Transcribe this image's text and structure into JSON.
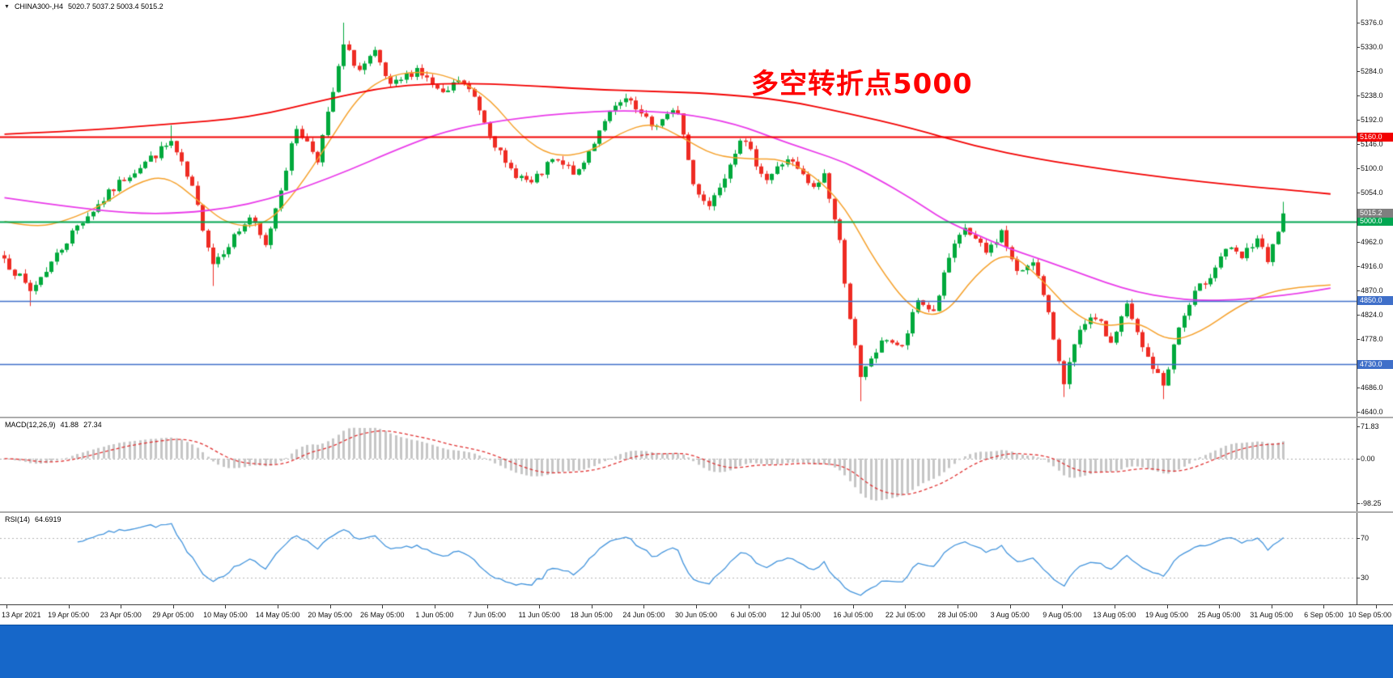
{
  "header": {
    "symbol": "CHINA300-,H4",
    "ohlc": "5020.7 5037.2 5003.4 5015.2"
  },
  "annotation": {
    "text": "多空转折点5000",
    "color": "#FF0000"
  },
  "colors": {
    "background": "#FFFFFF",
    "candle_up": "#00A93C",
    "candle_down": "#EE2B23",
    "bottom_bar": "#1667C9"
  },
  "chart_data": {
    "type": "candlestick",
    "symbol": "CHINA300-",
    "timeframe": "H4",
    "current_ohlc": {
      "open": 5020.7,
      "high": 5037.2,
      "low": 5003.4,
      "close": 5015.2
    },
    "price_axis": {
      "min": 4640,
      "max": 5376,
      "tick_step": 46,
      "ticks": [
        "5376.0",
        "5330.0",
        "5284.0",
        "5238.0",
        "5192.0",
        "5146.0",
        "5100.0",
        "5054.0",
        "4962.0",
        "4916.0",
        "4870.0",
        "4824.0",
        "4778.0",
        "4686.0",
        "4640.0"
      ]
    },
    "time_labels": [
      "13 Apr 2021",
      "19 Apr 05:00",
      "23 Apr 05:00",
      "29 Apr 05:00",
      "10 May 05:00",
      "14 May 05:00",
      "20 May 05:00",
      "26 May 05:00",
      "1 Jun 05:00",
      "7 Jun 05:00",
      "11 Jun 05:00",
      "18 Jun 05:00",
      "24 Jun 05:00",
      "30 Jun 05:00",
      "6 Jul 05:00",
      "12 Jul 05:00",
      "16 Jul 05:00",
      "22 Jul 05:00",
      "28 Jul 05:00",
      "3 Aug 05:00",
      "9 Aug 05:00",
      "13 Aug 05:00",
      "19 Aug 05:00",
      "25 Aug 05:00",
      "31 Aug 05:00",
      "6 Sep 05:00",
      "10 Sep 05:00"
    ],
    "candles": {
      "count": 246,
      "seed": 7,
      "noise": 9,
      "wick": 9,
      "close_anchors": [
        [
          0,
          4930
        ],
        [
          5,
          4868
        ],
        [
          14,
          4992
        ],
        [
          23,
          5082
        ],
        [
          32,
          5150
        ],
        [
          36,
          5060
        ],
        [
          40,
          4922
        ],
        [
          47,
          5008
        ],
        [
          50,
          4952
        ],
        [
          56,
          5178
        ],
        [
          60,
          5120
        ],
        [
          62,
          5200
        ],
        [
          65,
          5332
        ],
        [
          68,
          5286
        ],
        [
          71,
          5316
        ],
        [
          74,
          5252
        ],
        [
          79,
          5290
        ],
        [
          84,
          5236
        ],
        [
          87,
          5268
        ],
        [
          90,
          5235
        ],
        [
          96,
          5105
        ],
        [
          101,
          5070
        ],
        [
          105,
          5115
        ],
        [
          110,
          5090
        ],
        [
          115,
          5195
        ],
        [
          119,
          5230
        ],
        [
          124,
          5180
        ],
        [
          129,
          5210
        ],
        [
          132,
          5070
        ],
        [
          135,
          5030
        ],
        [
          138,
          5090
        ],
        [
          141,
          5160
        ],
        [
          146,
          5080
        ],
        [
          150,
          5120
        ],
        [
          155,
          5060
        ],
        [
          157,
          5090
        ],
        [
          160,
          4960
        ],
        [
          162,
          4820
        ],
        [
          164,
          4700
        ],
        [
          166,
          4742
        ],
        [
          169,
          4780
        ],
        [
          172,
          4760
        ],
        [
          175,
          4850
        ],
        [
          178,
          4830
        ],
        [
          181,
          4930
        ],
        [
          184,
          4988
        ],
        [
          188,
          4940
        ],
        [
          191,
          4980
        ],
        [
          194,
          4900
        ],
        [
          197,
          4930
        ],
        [
          200,
          4820
        ],
        [
          203,
          4700
        ],
        [
          206,
          4790
        ],
        [
          209,
          4820
        ],
        [
          212,
          4770
        ],
        [
          215,
          4840
        ],
        [
          218,
          4760
        ],
        [
          222,
          4690
        ],
        [
          225,
          4800
        ],
        [
          228,
          4862
        ],
        [
          231,
          4900
        ],
        [
          234,
          4950
        ],
        [
          237,
          4930
        ],
        [
          240,
          4968
        ],
        [
          242,
          4920
        ],
        [
          245,
          5015.2
        ]
      ],
      "extremes": [
        {
          "i": 65,
          "high": 5376
        },
        {
          "i": 32,
          "high": 5182
        },
        {
          "i": 164,
          "low": 4660
        },
        {
          "i": 203,
          "low": 4668
        },
        {
          "i": 222,
          "low": 4664
        },
        {
          "i": 5,
          "low": 4840
        },
        {
          "i": 40,
          "low": 4878
        },
        {
          "i": 245,
          "high": 5037.2
        }
      ]
    },
    "moving_averages": [
      {
        "name": "ma-fast-orange",
        "color": "#F5A02A",
        "width": 1.5,
        "points": [
          [
            0,
            5000
          ],
          [
            6,
            4988
          ],
          [
            12,
            5002
          ],
          [
            19,
            5032
          ],
          [
            25,
            5072
          ],
          [
            31,
            5088
          ],
          [
            37,
            5040
          ],
          [
            43,
            4992
          ],
          [
            50,
            4992
          ],
          [
            56,
            5058
          ],
          [
            62,
            5148
          ],
          [
            68,
            5240
          ],
          [
            74,
            5278
          ],
          [
            81,
            5284
          ],
          [
            87,
            5268
          ],
          [
            93,
            5232
          ],
          [
            99,
            5160
          ],
          [
            105,
            5122
          ],
          [
            112,
            5130
          ],
          [
            118,
            5168
          ],
          [
            124,
            5188
          ],
          [
            130,
            5158
          ],
          [
            136,
            5124
          ],
          [
            143,
            5118
          ],
          [
            149,
            5118
          ],
          [
            155,
            5088
          ],
          [
            161,
            5028
          ],
          [
            167,
            4920
          ],
          [
            174,
            4830
          ],
          [
            180,
            4820
          ],
          [
            186,
            4900
          ],
          [
            192,
            4945
          ],
          [
            198,
            4898
          ],
          [
            205,
            4822
          ],
          [
            211,
            4800
          ],
          [
            217,
            4812
          ],
          [
            223,
            4772
          ],
          [
            229,
            4790
          ],
          [
            236,
            4838
          ],
          [
            242,
            4866
          ],
          [
            248,
            4876
          ],
          [
            254,
            4880
          ]
        ]
      },
      {
        "name": "ma-mid-magenta",
        "color": "#E93BE9",
        "width": 1.8,
        "points": [
          [
            0,
            5045
          ],
          [
            16,
            5022
          ],
          [
            31,
            5012
          ],
          [
            47,
            5030
          ],
          [
            62,
            5080
          ],
          [
            78,
            5148
          ],
          [
            87,
            5178
          ],
          [
            99,
            5196
          ],
          [
            108,
            5205
          ],
          [
            118,
            5210
          ],
          [
            129,
            5206
          ],
          [
            140,
            5185
          ],
          [
            149,
            5152
          ],
          [
            155,
            5132
          ],
          [
            161,
            5112
          ],
          [
            167,
            5082
          ],
          [
            174,
            5042
          ],
          [
            180,
            5002
          ],
          [
            186,
            4976
          ],
          [
            192,
            4950
          ],
          [
            198,
            4930
          ],
          [
            205,
            4906
          ],
          [
            211,
            4884
          ],
          [
            217,
            4866
          ],
          [
            223,
            4856
          ],
          [
            229,
            4850
          ],
          [
            236,
            4852
          ],
          [
            242,
            4857
          ],
          [
            248,
            4864
          ],
          [
            254,
            4874
          ]
        ]
      },
      {
        "name": "ma-slow-red",
        "color": "#F20000",
        "width": 1.8,
        "points": [
          [
            0,
            5165
          ],
          [
            16,
            5172
          ],
          [
            31,
            5184
          ],
          [
            47,
            5196
          ],
          [
            62,
            5232
          ],
          [
            74,
            5256
          ],
          [
            87,
            5262
          ],
          [
            99,
            5258
          ],
          [
            112,
            5250
          ],
          [
            124,
            5246
          ],
          [
            136,
            5242
          ],
          [
            149,
            5230
          ],
          [
            161,
            5206
          ],
          [
            174,
            5176
          ],
          [
            186,
            5142
          ],
          [
            198,
            5118
          ],
          [
            211,
            5098
          ],
          [
            223,
            5082
          ],
          [
            236,
            5068
          ],
          [
            248,
            5058
          ],
          [
            254,
            5052
          ]
        ]
      }
    ],
    "horizontal_lines": [
      {
        "price": 5160,
        "label": "5160.0",
        "color": "#F20000",
        "width": 2
      },
      {
        "price": 5000,
        "label": "5000.0",
        "color": "#00A651",
        "width": 1.8
      },
      {
        "price": 4850,
        "label": "4850.0",
        "color": "#3F6FC9",
        "width": 1.6
      },
      {
        "price": 4730,
        "label": "4730.0",
        "color": "#3F6FC9",
        "width": 1.6
      }
    ],
    "current_price": {
      "value": 5015.2,
      "label": "5015.2",
      "tag_color": "#7F7F7F"
    },
    "indicators": {
      "macd": {
        "label": "MACD(12,26,9)",
        "value_main": "41.88",
        "value_signal": "27.34",
        "params": [
          12,
          26,
          9
        ],
        "axis_ticks": [
          "71.83",
          "0.00",
          "-98.25"
        ],
        "histogram_color": "#C6C6C6",
        "signal_color": "#E03232"
      },
      "rsi": {
        "label": "RSI(14)",
        "value": "64.6919",
        "period": 14,
        "levels": [
          70,
          30
        ],
        "axis_ticks": [
          "70",
          "30"
        ],
        "line_color": "#4394DC"
      }
    }
  }
}
